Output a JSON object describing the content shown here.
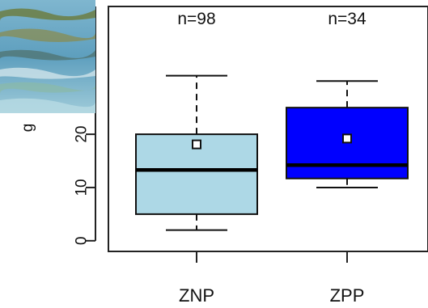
{
  "chart_data": {
    "type": "box",
    "ylabel": "g",
    "ylim": [
      -2,
      44
    ],
    "yticks": [
      0,
      10,
      20
    ],
    "grid": false,
    "categories": [
      "ZNP",
      "ZPP"
    ],
    "boxes": [
      {
        "category": "ZNP",
        "n_label": "n=98",
        "min": 2,
        "q1": 5,
        "median": 13.3,
        "q3": 20,
        "max": 31,
        "mean": 18.1,
        "fill": "#add8e6"
      },
      {
        "category": "ZPP",
        "n_label": "n=34",
        "min": 10,
        "q1": 11.7,
        "median": 14.2,
        "q3": 25,
        "max": 30,
        "mean": 19.2,
        "fill": "#0000ff"
      }
    ]
  },
  "photo": {
    "icon": "water-photo-thumbnail"
  }
}
